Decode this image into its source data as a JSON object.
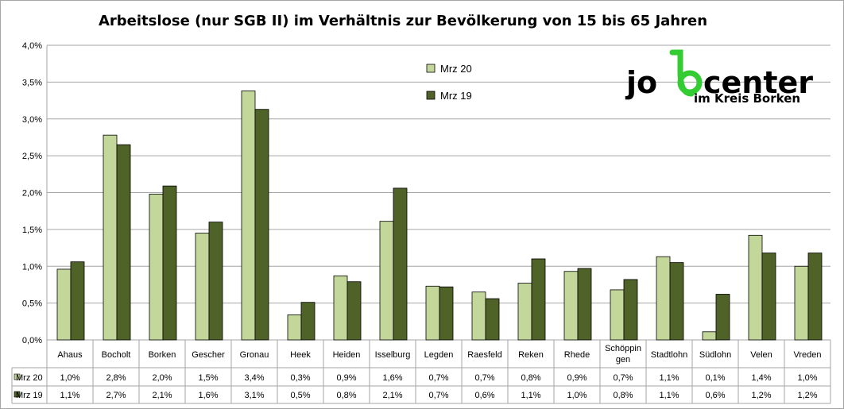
{
  "chart_data": {
    "type": "bar",
    "title": "Arbeitslose (nur SGB II) im Verhältnis zur Bevölkerung von 15 bis 65 Jahren",
    "xlabel": "",
    "ylabel": "",
    "ylim": [
      0,
      4.0
    ],
    "yticks": [
      "0,0%",
      "0,5%",
      "1,0%",
      "1,5%",
      "2,0%",
      "2,5%",
      "3,0%",
      "3,5%",
      "4,0%"
    ],
    "categories": [
      "Ahaus",
      "Bocholt",
      "Borken",
      "Gescher",
      "Gronau",
      "Heek",
      "Heiden",
      "Isselburg",
      "Legden",
      "Raesfeld",
      "Reken",
      "Rhede",
      "Schöppin gen",
      "Stadtlohn",
      "Südlohn",
      "Velen",
      "Vreden"
    ],
    "legend_position": "top-center",
    "grid": true,
    "series": [
      {
        "name": "Mrz 20",
        "color": "#c4d79b",
        "values": [
          0.96,
          2.78,
          1.98,
          1.45,
          3.38,
          0.34,
          0.87,
          1.61,
          0.73,
          0.65,
          0.77,
          0.93,
          0.68,
          1.13,
          0.11,
          1.42,
          1.0
        ],
        "labels": [
          "1,0%",
          "2,8%",
          "2,0%",
          "1,5%",
          "3,4%",
          "0,3%",
          "0,9%",
          "1,6%",
          "0,7%",
          "0,7%",
          "0,8%",
          "0,9%",
          "0,7%",
          "1,1%",
          "0,1%",
          "1,4%",
          "1,0%"
        ]
      },
      {
        "name": "Mrz 19",
        "color": "#4f6228",
        "values": [
          1.06,
          2.65,
          2.09,
          1.6,
          3.13,
          0.51,
          0.79,
          2.06,
          0.72,
          0.56,
          1.1,
          0.97,
          0.82,
          1.05,
          0.62,
          1.18,
          1.18
        ],
        "labels": [
          "1,1%",
          "2,7%",
          "2,1%",
          "1,6%",
          "3,1%",
          "0,5%",
          "0,8%",
          "2,1%",
          "0,7%",
          "0,6%",
          "1,1%",
          "1,0%",
          "0,8%",
          "1,1%",
          "0,6%",
          "1,2%",
          "1,2%"
        ]
      }
    ]
  },
  "logo": {
    "name": "jobcenter",
    "part1": "jo",
    "part2": "center",
    "subtitle": "im Kreis Borken",
    "accent_color": "#33cc33"
  }
}
